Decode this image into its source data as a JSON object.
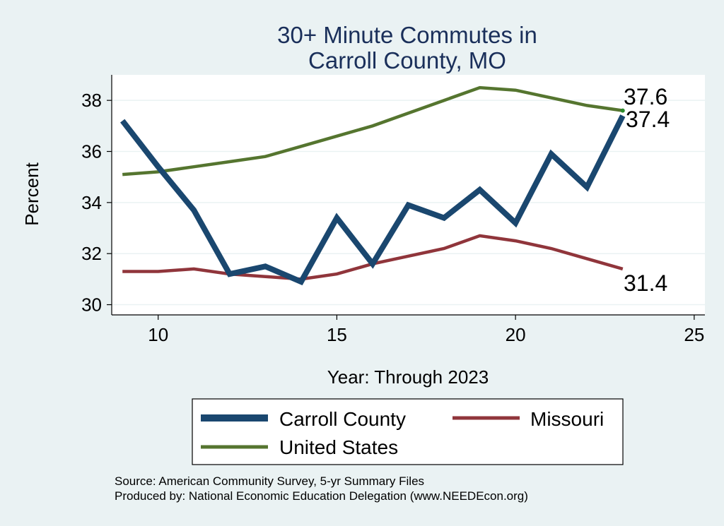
{
  "chart_data": {
    "type": "line",
    "title": [
      "30+ Minute Commutes in",
      "Carroll County, MO"
    ],
    "xlabel": "Year: Through 2023",
    "ylabel": "Percent",
    "xlim": [
      8.7,
      25.3
    ],
    "ylim": [
      29.6,
      39.0
    ],
    "xticks": [
      10,
      15,
      20,
      25
    ],
    "yticks": [
      30,
      32,
      34,
      36,
      38
    ],
    "grid": true,
    "series": [
      {
        "name": "Carroll County",
        "color": "#1a476f",
        "x": [
          9,
          10,
          11,
          12,
          13,
          14,
          15,
          16,
          17,
          18,
          19,
          20,
          21,
          22,
          23
        ],
        "values": [
          37.2,
          35.4,
          33.7,
          31.2,
          31.5,
          30.9,
          33.4,
          31.6,
          33.9,
          33.4,
          34.5,
          33.2,
          35.9,
          34.6,
          37.4
        ],
        "end_label": "37.4"
      },
      {
        "name": "Missouri",
        "color": "#90353b",
        "x": [
          9,
          10,
          11,
          12,
          13,
          14,
          15,
          16,
          17,
          18,
          19,
          20,
          21,
          22,
          23
        ],
        "values": [
          31.3,
          31.3,
          31.4,
          31.2,
          31.1,
          31.0,
          31.2,
          31.6,
          31.9,
          32.2,
          32.7,
          32.5,
          32.2,
          31.8,
          31.4
        ],
        "end_label": "31.4"
      },
      {
        "name": "United States",
        "color": "#55752f",
        "x": [
          9,
          10,
          11,
          12,
          13,
          14,
          15,
          16,
          17,
          18,
          19,
          20,
          21,
          22,
          23
        ],
        "values": [
          35.1,
          35.2,
          35.4,
          35.6,
          35.8,
          36.2,
          36.6,
          37.0,
          37.5,
          38.0,
          38.5,
          38.4,
          38.1,
          37.8,
          37.6
        ],
        "end_label": "37.6"
      }
    ],
    "legend": {
      "placement": "bottom",
      "entries": [
        "Carroll County",
        "Missouri",
        "United States"
      ]
    }
  },
  "source": {
    "line1": "Source: American Community Survey, 5-yr Summary Files",
    "line2": "Produced by: National Economic Education Delegation (www.NEEDEcon.org)"
  }
}
